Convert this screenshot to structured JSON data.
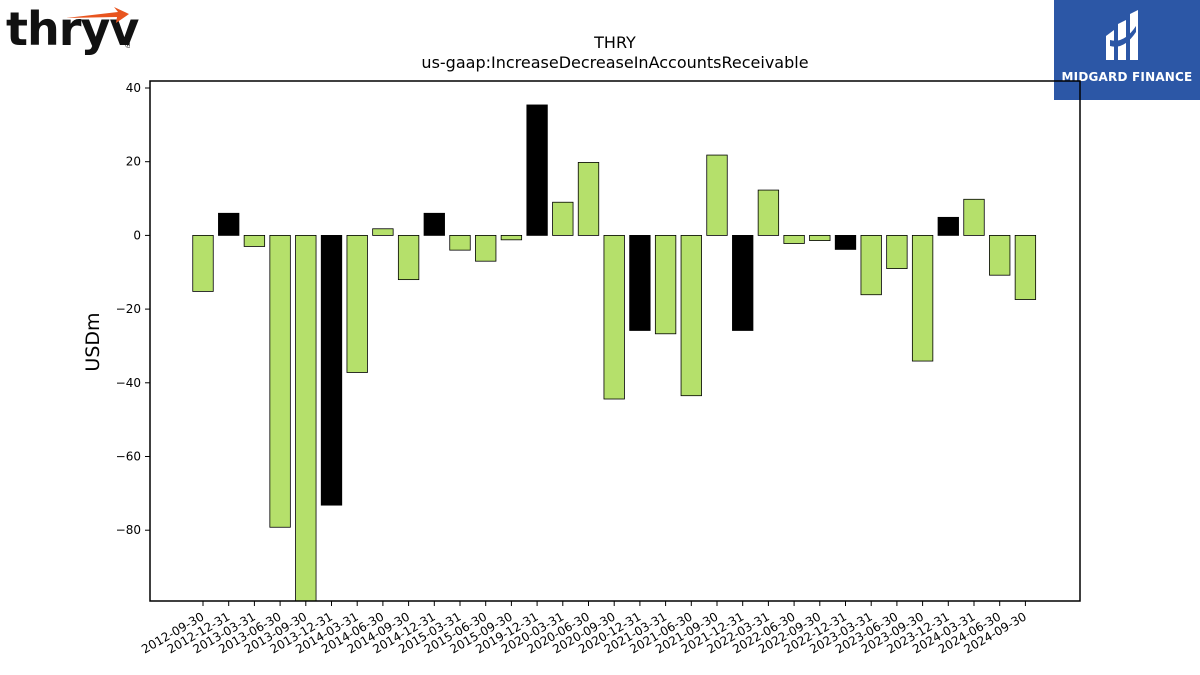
{
  "branding": {
    "company_logo_text": "thryv",
    "company_logo_mark": "®",
    "publisher_logo_text": "MIDGARD FINANCE",
    "company_logo_accent": "#e8541e",
    "publisher_bg": "#2c57a6"
  },
  "chart_data": {
    "type": "bar",
    "title": "THRY",
    "subtitle": "us-gaap:IncreaseDecreaseInAccountsReceivable",
    "xlabel": "",
    "ylabel": "USDm",
    "ylim": [
      -99,
      42
    ],
    "yticks": [
      40,
      20,
      0,
      -20,
      -40,
      -60,
      -80
    ],
    "grid": false,
    "colors": {
      "positive": "#b5e06b",
      "highlight": "#000000",
      "edge": "#000000"
    },
    "categories": [
      "2012-09-30",
      "2012-12-31",
      "2013-03-31",
      "2013-06-30",
      "2013-09-30",
      "2013-12-31",
      "2014-03-31",
      "2014-06-30",
      "2014-09-30",
      "2014-12-31",
      "2015-03-31",
      "2015-06-30",
      "2015-09-30",
      "2019-12-31",
      "2020-03-31",
      "2020-06-30",
      "2020-09-30",
      "2020-12-31",
      "2021-03-31",
      "2021-06-30",
      "2021-09-30",
      "2021-12-31",
      "2022-03-31",
      "2022-06-30",
      "2022-09-30",
      "2022-12-31",
      "2023-03-31",
      "2023-06-30",
      "2023-09-30",
      "2023-12-31",
      "2024-03-31",
      "2024-06-30",
      "2024-09-30"
    ],
    "values": [
      -15.2,
      6.0,
      -3.0,
      -79.2,
      -100.0,
      -73.2,
      -37.2,
      1.8,
      -12.0,
      6.0,
      -4.0,
      -7.0,
      -1.2,
      35.4,
      9.0,
      19.8,
      -44.4,
      -25.8,
      -26.7,
      -43.5,
      21.8,
      -25.8,
      12.3,
      -2.2,
      -1.4,
      -3.8,
      -16.1,
      -9.0,
      -34.1,
      4.9,
      9.8,
      -10.8,
      -17.4
    ],
    "highlight": [
      false,
      true,
      false,
      false,
      false,
      true,
      false,
      false,
      false,
      true,
      false,
      false,
      false,
      true,
      false,
      false,
      false,
      true,
      false,
      false,
      false,
      true,
      false,
      false,
      false,
      true,
      false,
      false,
      false,
      true,
      false,
      false,
      false
    ]
  }
}
